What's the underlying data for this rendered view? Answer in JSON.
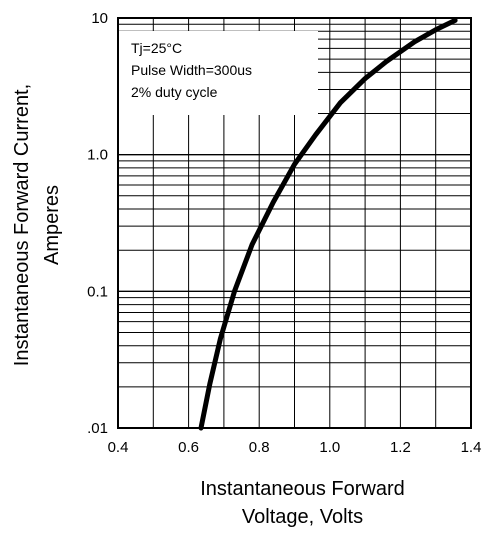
{
  "chart_data": {
    "type": "line",
    "xlabel_lines": [
      "Instantaneous Forward",
      "Voltage, Volts"
    ],
    "ylabel_lines": [
      "Instantaneous Forward Current,",
      "Amperes"
    ],
    "xlim": [
      0.4,
      1.4
    ],
    "ylim": [
      0.01,
      10
    ],
    "y_scale": "log",
    "grid": true,
    "x_ticks": [
      0.4,
      0.6,
      0.8,
      1.0,
      1.2,
      1.4
    ],
    "x_tick_labels": [
      "0.4",
      "0.6",
      "0.8",
      "1.0",
      "1.2",
      "1.4"
    ],
    "y_ticks": [
      0.01,
      0.1,
      1,
      10
    ],
    "y_tick_labels": [
      ".01",
      "0.1",
      "1.0",
      "10"
    ],
    "annotations": [
      "Tj=25°C",
      "Pulse Width=300us",
      "2% duty cycle"
    ],
    "series": [
      {
        "color": "#000000",
        "x": [
          0.635,
          0.66,
          0.69,
          0.73,
          0.78,
          0.84,
          0.9,
          0.96,
          1.03,
          1.1,
          1.16,
          1.24,
          1.3,
          1.355
        ],
        "y": [
          0.01,
          0.021,
          0.045,
          0.1,
          0.22,
          0.45,
          0.85,
          1.4,
          2.4,
          3.6,
          4.8,
          6.7,
          8.2,
          9.6
        ]
      }
    ]
  }
}
